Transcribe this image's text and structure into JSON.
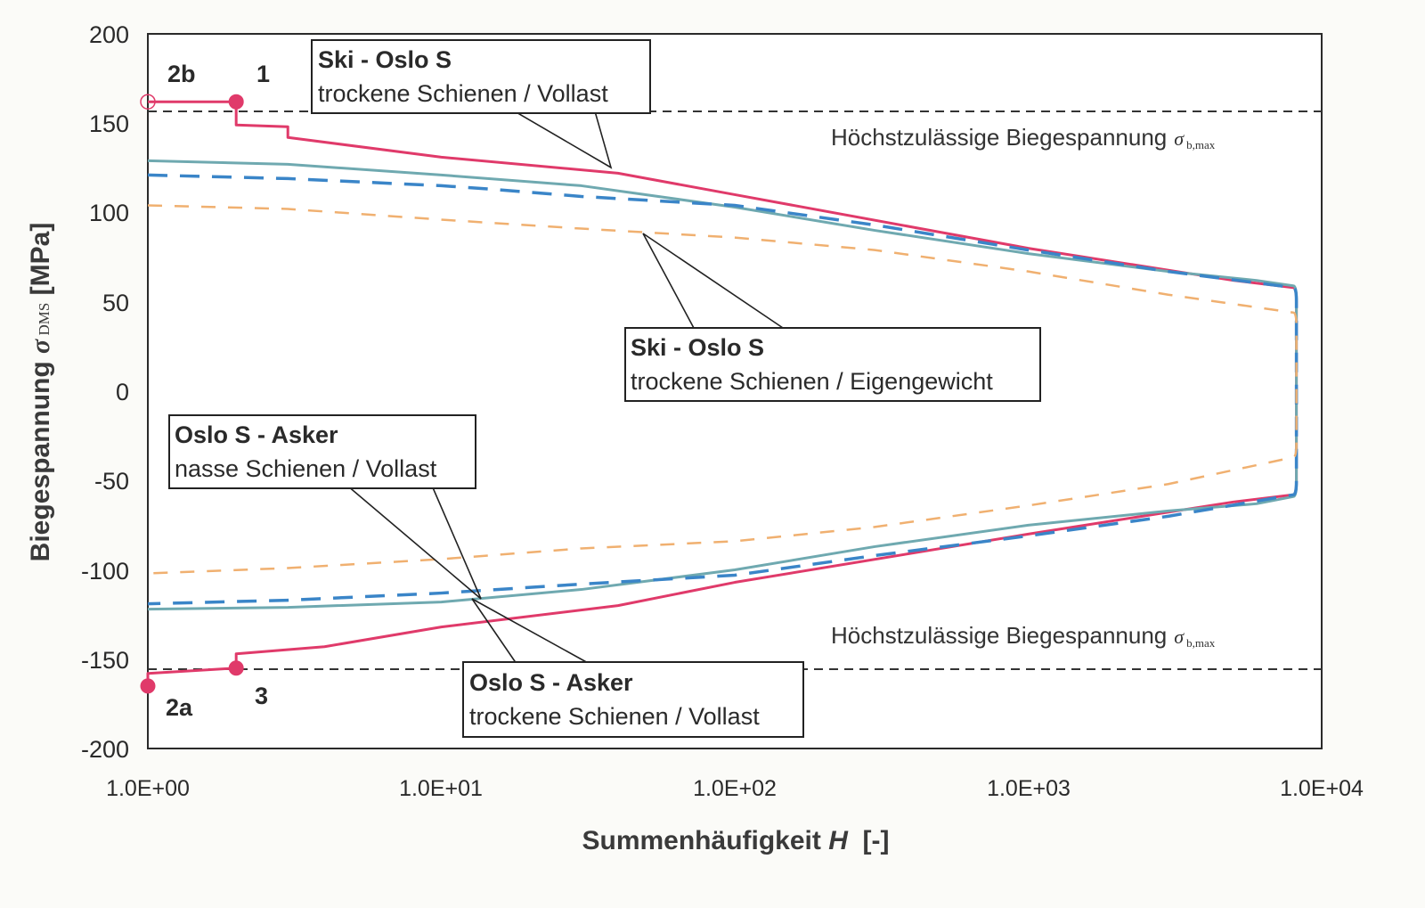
{
  "chart_data": {
    "type": "line",
    "title": "",
    "xlabel": "Summenhäufigkeit H [-]",
    "xlabel_parts": {
      "main": "Summenhäufigkeit ",
      "var": "H",
      "unit": "  [-]"
    },
    "ylabel": "Biegespannung σ DMS [MPa]",
    "ylabel_parts": {
      "main": "Biegespannung ",
      "sigma": "σ",
      "sub": " DMS",
      "unit": " [MPa]"
    },
    "xscale": "log",
    "xlim": [
      1,
      10000
    ],
    "ylim": [
      -200,
      200
    ],
    "grid": false,
    "x_ticks": [
      "1.0E+00",
      "1.0E+01",
      "1.0E+02",
      "1.0E+03",
      "1.0E+04"
    ],
    "y_ticks": [
      "200",
      "150",
      "100",
      "50",
      "0",
      "-50",
      "-100",
      "-150",
      "-200"
    ],
    "reference_lines": [
      {
        "name": "Höchstzulässige Biegespannung σb,max (upper)",
        "y": 157,
        "style": "dashed",
        "color": "#333333",
        "label": "Höchstzulässige Biegespannung",
        "sigma": "σ",
        "sub": "b,max"
      },
      {
        "name": "Höchstzulässige Biegespannung σb,max (lower)",
        "y": -155,
        "style": "dashed",
        "color": "#333333",
        "label": "Höchstzulässige Biegespannung",
        "sigma": "σ",
        "sub": "b,max"
      }
    ],
    "series": [
      {
        "name": "Ski - Oslo S / trockene Schienen / Vollast",
        "color": "#e03a6a",
        "style": "solid",
        "upper": {
          "x": [
            1,
            2,
            2,
            3,
            3,
            10,
            40,
            100,
            1000,
            5000,
            8000
          ],
          "y": [
            162,
            162,
            149,
            148,
            142,
            131,
            122,
            110,
            80,
            62,
            58
          ]
        },
        "lower": {
          "x": [
            1,
            1,
            2,
            2,
            4,
            10,
            40,
            100,
            1000,
            5000,
            8000
          ],
          "y": [
            -165,
            -158,
            -155,
            -147,
            -143,
            -132,
            -120,
            -107,
            -80,
            -62,
            -58
          ]
        }
      },
      {
        "name": "Oslo S - Asker / nasse Schienen / Vollast",
        "color": "#6fa9b0",
        "style": "solid",
        "upper": {
          "x": [
            1,
            3,
            10,
            30,
            100,
            300,
            1000,
            3000,
            6000,
            8000
          ],
          "y": [
            129,
            127,
            121,
            115,
            103,
            90,
            77,
            67,
            62,
            59
          ]
        },
        "lower": {
          "x": [
            1,
            3,
            10,
            30,
            100,
            300,
            1000,
            3000,
            6000,
            8000
          ],
          "y": [
            -122,
            -121,
            -118,
            -111,
            -100,
            -87,
            -75,
            -67,
            -63,
            -59
          ]
        }
      },
      {
        "name": "Oslo S - Asker / trockene Schienen / Vollast",
        "color": "#3a85c8",
        "style": "dashed",
        "upper": {
          "x": [
            1,
            3,
            10,
            15,
            30,
            100,
            300,
            1000,
            3000,
            8000
          ],
          "y": [
            121,
            119,
            115,
            113,
            109,
            104,
            93,
            79,
            67,
            58
          ]
        },
        "lower": {
          "x": [
            1,
            3,
            10,
            30,
            100,
            300,
            1000,
            3000,
            8000
          ],
          "y": [
            -119,
            -117,
            -113,
            -108,
            -103,
            -92,
            -81,
            -70,
            -58
          ]
        }
      },
      {
        "name": "Ski - Oslo S / trockene Schienen / Eigengewicht",
        "color": "#f0b070",
        "style": "dashed",
        "upper": {
          "x": [
            1,
            3,
            10,
            30,
            100,
            300,
            1000,
            3000,
            8000
          ],
          "y": [
            104,
            102,
            96,
            91,
            86,
            79,
            67,
            54,
            44
          ]
        },
        "lower": {
          "x": [
            1,
            3,
            10,
            30,
            100,
            300,
            1000,
            3000,
            8000
          ],
          "y": [
            -102,
            -99,
            -94,
            -88,
            -84,
            -76,
            -64,
            -52,
            -37
          ]
        }
      }
    ],
    "markers": [
      {
        "label": "2b",
        "x": 1,
        "y": 162,
        "filled": false,
        "color": "#e03a6a"
      },
      {
        "label": "1",
        "x": 2,
        "y": 162,
        "filled": true,
        "color": "#e03a6a"
      },
      {
        "label": "2a",
        "x": 1,
        "y": -165,
        "filled": true,
        "color": "#e03a6a"
      },
      {
        "label": "3",
        "x": 2,
        "y": -155,
        "filled": true,
        "color": "#e03a6a"
      }
    ],
    "annotations": [
      {
        "title": "Ski - Oslo S",
        "subtitle": "trockene Schienen / Vollast"
      },
      {
        "title": "Ski - Oslo S",
        "subtitle": "trockene Schienen / Eigengewicht"
      },
      {
        "title": "Oslo S - Asker",
        "subtitle": "nasse Schienen / Vollast"
      },
      {
        "title": "Oslo S - Asker",
        "subtitle": "trockene Schienen / Vollast"
      }
    ]
  }
}
